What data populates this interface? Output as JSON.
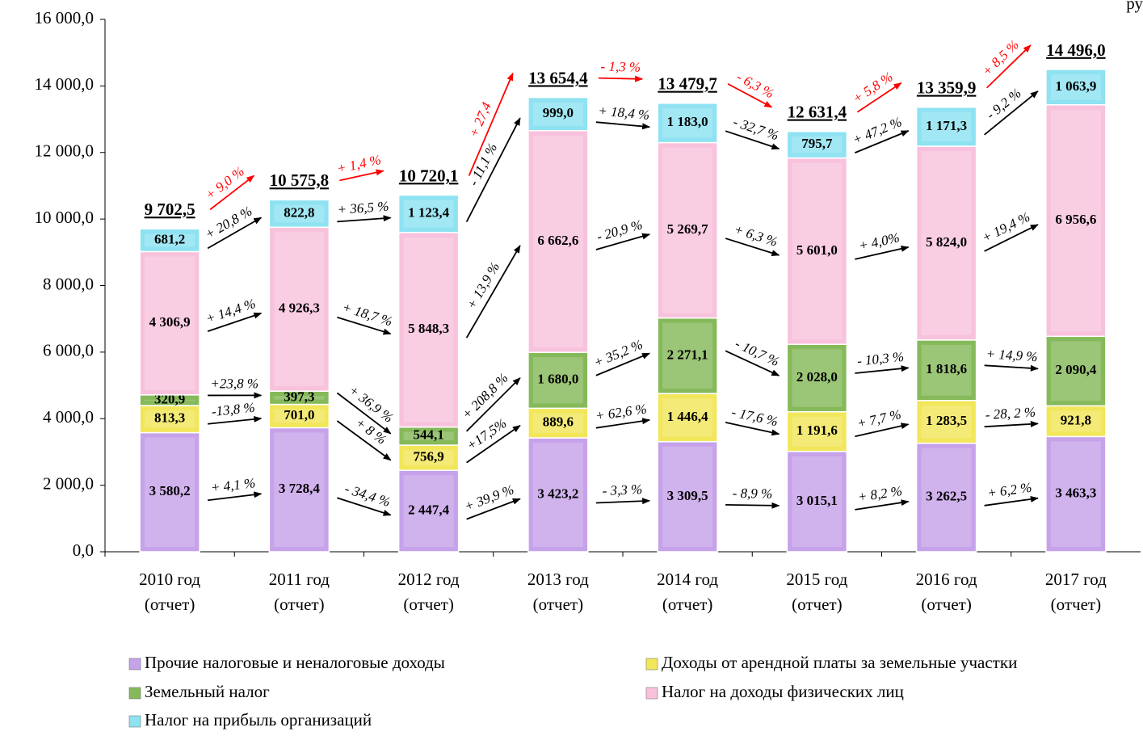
{
  "chart_data": {
    "type": "stacked_bar",
    "unit_label": "ру",
    "categories": [
      [
        "2010 год",
        "(отчет)"
      ],
      [
        "2011 год",
        "(отчет)"
      ],
      [
        "2012 год",
        "(отчет)"
      ],
      [
        "2013 год",
        "(отчет)"
      ],
      [
        "2014 год",
        "(отчет)"
      ],
      [
        "2015 год",
        "(отчет)"
      ],
      [
        "2016 год",
        "(отчет)"
      ],
      [
        "2017 год",
        "(отчет)"
      ]
    ],
    "series": [
      {
        "name": "Прочие налоговые и неналоговые доходы",
        "color": "#c6a2ea",
        "values": [
          3580.2,
          3728.4,
          2447.4,
          3423.2,
          3309.5,
          3015.1,
          3262.5,
          3463.3
        ],
        "value_labels": [
          "3 580,2",
          "3 728,4",
          "2 447,4",
          "3 423,2",
          "3 309,5",
          "3 015,1",
          "3 262,5",
          "3 463,3"
        ],
        "growth": [
          "+ 4,1 %",
          "- 34,4 %",
          "+ 39,9 %",
          "- 3,3 %",
          "- 8,9 %",
          "+ 8,2 %",
          "+ 6,2 %"
        ]
      },
      {
        "name": "Доходы от арендной платы за земельные участки",
        "color": "#f2e65a",
        "values": [
          813.3,
          701.0,
          756.9,
          889.6,
          1446.4,
          1191.6,
          1283.5,
          921.8
        ],
        "value_labels": [
          "813,3",
          "701,0",
          "756,9",
          "889,6",
          "1 446,4",
          "1 191,6",
          "1 283,5",
          "921,8"
        ],
        "growth": [
          "-13,8 %",
          "+ 8 %",
          "+17,5%",
          "+ 62,6 %",
          "- 17,6 %",
          "+ 7,7 %",
          "- 28, 2 %"
        ]
      },
      {
        "name": "Земельный налог",
        "color": "#86b95a",
        "values": [
          320.9,
          397.3,
          544.1,
          1680.0,
          2271.1,
          2028.0,
          1818.6,
          2090.4
        ],
        "value_labels": [
          "320,9",
          "397,3",
          "544,1",
          "1 680,0",
          "2 271,1",
          "2 028,0",
          "1 818,6",
          "2 090,4"
        ],
        "growth": [
          "+23,8 %",
          "+ 36,9 %",
          "+ 208,8 %",
          "+ 35,2 %",
          "- 10,7 %",
          "- 10,3 %",
          "+ 14,9 %"
        ]
      },
      {
        "name": "Налог на доходы физических лиц",
        "color": "#f8c2dc",
        "values": [
          4306.9,
          4926.3,
          5848.3,
          6662.6,
          5269.7,
          5601.0,
          5824.0,
          6956.6
        ],
        "value_labels": [
          "4 306,9",
          "4 926,3",
          "5 848,3",
          "6 662,6",
          "5 269,7",
          "5 601,0",
          "5 824,0",
          "6 956,6"
        ],
        "growth": [
          "+ 14,4 %",
          "+ 18,7 %",
          "+ 13,9 %",
          "- 20,9 %",
          "+ 6,3 %",
          "+ 4,0%",
          "+ 19,4 %"
        ]
      },
      {
        "name": "Налог на прибыль организаций",
        "color": "#8ee2f2",
        "values": [
          681.2,
          822.8,
          1123.4,
          999.0,
          1183.0,
          795.7,
          1171.3,
          1063.9
        ],
        "value_labels": [
          "681,2",
          "822,8",
          "1 123,4",
          "999,0",
          "1 183,0",
          "795,7",
          "1 171,3",
          "1 063,9"
        ],
        "growth": [
          "+ 20,8 %",
          "+ 36,5 %",
          "- 11,1 %",
          "+ 18,4 %",
          "- 32,7 %",
          "+ 47,2 %",
          "- 9,2 %"
        ]
      }
    ],
    "totals": [
      9702.5,
      10575.8,
      10720.1,
      13654.4,
      13479.7,
      12631.4,
      13359.9,
      14496.0
    ],
    "total_labels": [
      "9 702,5",
      "10 575,8",
      "10 720,1",
      "13 654,4",
      "13 479,7",
      "12 631,4",
      "13 359,9",
      "14 496,0"
    ],
    "total_growth": [
      "+ 9,0 %",
      "+ 1,4 %",
      "+ 27,4",
      "- 1,3 %",
      "- 6,3 %",
      "+ 5,8 %",
      "+ 8,5 %"
    ],
    "total_growth_color": "#ff0000",
    "ylim": [
      0,
      16000
    ],
    "yticks": [
      {
        "value": 0,
        "label": "0,0"
      },
      {
        "value": 2000,
        "label": "2 000,0"
      },
      {
        "value": 4000,
        "label": "4 000,0"
      },
      {
        "value": 6000,
        "label": "6 000,0"
      },
      {
        "value": 8000,
        "label": "8 000,0"
      },
      {
        "value": 10000,
        "label": "10 000,0"
      },
      {
        "value": 12000,
        "label": "12 000,0"
      },
      {
        "value": 14000,
        "label": "14 000,0"
      },
      {
        "value": 16000,
        "label": "16 000,0"
      }
    ],
    "grid": false,
    "legend": "bottom"
  }
}
